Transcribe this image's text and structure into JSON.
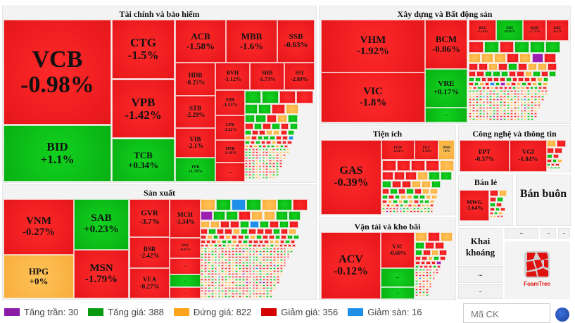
{
  "colors": {
    "ceil": "#9b1fb0",
    "up": "#0a9a12",
    "flat": "#f9a825",
    "down": "#d50000",
    "floor": "#1e8fe8"
  },
  "sectors": {
    "fin": {
      "title": "Tài chính và bảo hiểm"
    },
    "man": {
      "title": "Sản xuất"
    },
    "real": {
      "title": "Xây dựng và Bất động sản"
    },
    "util": {
      "title": "Tiện ích"
    },
    "trans": {
      "title": "Vận tải và kho bãi"
    },
    "tech": {
      "title": "Công nghệ và thông tin"
    },
    "retail": {
      "title": "Bán lẻ"
    },
    "whole": {
      "title": "Bán buôn"
    },
    "mining": {
      "title": "Khai khoáng"
    }
  },
  "tiles": {
    "VCB": {
      "ticker": "VCB",
      "change": "-0.98%",
      "state": "down"
    },
    "BID": {
      "ticker": "BID",
      "change": "+1.1%",
      "state": "up"
    },
    "CTG": {
      "ticker": "CTG",
      "change": "-1.5%",
      "state": "down"
    },
    "VPB": {
      "ticker": "VPB",
      "change": "-1.42%",
      "state": "down"
    },
    "TCB": {
      "ticker": "TCB",
      "change": "+0.34%",
      "state": "up"
    },
    "ACB": {
      "ticker": "ACB",
      "change": "-1.58%",
      "state": "down"
    },
    "MBB": {
      "ticker": "MBB",
      "change": "-1.6%",
      "state": "down"
    },
    "SSB": {
      "ticker": "SSB",
      "change": "-0.63%",
      "state": "down"
    },
    "HDB": {
      "ticker": "HDB",
      "change": "-0.25%",
      "state": "down"
    },
    "BVH": {
      "ticker": "BVH",
      "change": "-1.12%",
      "state": "down"
    },
    "SHB": {
      "ticker": "SHB",
      "change": "-1.73%",
      "state": "down"
    },
    "SSI": {
      "ticker": "SSI",
      "change": "-2.89%",
      "state": "down"
    },
    "STB": {
      "ticker": "STB",
      "change": "-2.29%",
      "state": "down"
    },
    "VIB": {
      "ticker": "VIB",
      "change": "-2.1%",
      "state": "down"
    },
    "TPB": {
      "ticker": "TPB",
      "change": "+1.76%",
      "state": "up"
    },
    "EIB": {
      "ticker": "EIB",
      "change": "-1.53%",
      "state": "down"
    },
    "LPB": {
      "ticker": "LPB",
      "change": "-3.22%",
      "state": "down"
    },
    "MSB": {
      "ticker": "MSB",
      "change": "-1.19%",
      "state": "down"
    },
    "FIN1": {
      "ticker": "...",
      "change": "",
      "state": "down"
    },
    "VNM": {
      "ticker": "VNM",
      "change": "-0.27%",
      "state": "down"
    },
    "HPG": {
      "ticker": "HPG",
      "change": "+0%",
      "state": "flat"
    },
    "SAB": {
      "ticker": "SAB",
      "change": "+0.23%",
      "state": "up"
    },
    "MSN": {
      "ticker": "MSN",
      "change": "-1.79%",
      "state": "down"
    },
    "GVR": {
      "ticker": "GVR",
      "change": "-3.7%",
      "state": "down"
    },
    "BSR": {
      "ticker": "BSR",
      "change": "-2.42%",
      "state": "down"
    },
    "VEA": {
      "ticker": "VEA",
      "change": "-0.27%",
      "state": "down"
    },
    "MCH": {
      "ticker": "MCH",
      "change": "-1.34%",
      "state": "down"
    },
    "PNJ": {
      "ticker": "PNJ",
      "change": "-0.65%",
      "state": "down"
    },
    "MAN1": {
      "ticker": "...",
      "change": "",
      "state": "down"
    },
    "MAN2": {
      "ticker": "...",
      "change": "",
      "state": "up"
    },
    "MAN3": {
      "ticker": "...",
      "change": "",
      "state": "down"
    },
    "VHM": {
      "ticker": "VHM",
      "change": "-1.92%",
      "state": "down"
    },
    "VIC": {
      "ticker": "VIC",
      "change": "-1.8%",
      "state": "down"
    },
    "BCM": {
      "ticker": "BCM",
      "change": "-0.86%",
      "state": "down"
    },
    "VRE": {
      "ticker": "VRE",
      "change": "+0.17%",
      "state": "up"
    },
    "RE1": {
      "ticker": "...",
      "change": "",
      "state": "up"
    },
    "REE": {
      "ticker": "REE",
      "change": "-1.14%",
      "state": "down"
    },
    "SSH": {
      "ticker": "SSH",
      "change": "+0.95%",
      "state": "up"
    },
    "KDH": {
      "ticker": "KDH",
      "change": "-1.72%",
      "state": "down"
    },
    "KBC": {
      "ticker": "KBC",
      "change": "-4.2%",
      "state": "down"
    },
    "GAS": {
      "ticker": "GAS",
      "change": "-0.39%",
      "state": "down"
    },
    "POW": {
      "ticker": "POW",
      "change": "-2.23%",
      "state": "down"
    },
    "PGV": {
      "ticker": "PGV",
      "change": "-1.34%",
      "state": "down"
    },
    "DNH": {
      "ticker": "DNH",
      "change": "+0%",
      "state": "flat"
    },
    "ACV": {
      "ticker": "ACV",
      "change": "-0.12%",
      "state": "down"
    },
    "VJC": {
      "ticker": "VJC",
      "change": "-0.68%",
      "state": "down"
    },
    "TR1": {
      "ticker": "...",
      "change": "",
      "state": "up"
    },
    "TR2": {
      "ticker": "...",
      "change": "",
      "state": "up"
    },
    "FPT": {
      "ticker": "FPT",
      "change": "-0.37%",
      "state": "down"
    },
    "VGI": {
      "ticker": "VGI",
      "change": "-1.84%",
      "state": "down"
    },
    "MWG": {
      "ticker": "MWG",
      "change": "-1.64%",
      "state": "down"
    },
    "G1": {
      "ticker": "...",
      "change": "",
      "state": "gray"
    },
    "G2": {
      "ticker": "...",
      "change": "",
      "state": "gray"
    },
    "G3": {
      "ticker": "...",
      "change": "",
      "state": "gray"
    },
    "G4": {
      "ticker": "...",
      "change": "",
      "state": "gray"
    },
    "G5": {
      "ticker": "...",
      "change": "",
      "state": "gray"
    }
  },
  "legend": [
    {
      "label": "Tăng trần: 30",
      "color": "#8e1aa8"
    },
    {
      "label": "Tăng giá: 388",
      "color": "#0a9a12"
    },
    {
      "label": "Đứng giá: 822",
      "color": "#ffa31a"
    },
    {
      "label": "Giảm giá: 356",
      "color": "#d50000"
    },
    {
      "label": "Giảm sàn: 16",
      "color": "#1e8fe8"
    }
  ],
  "search": {
    "placeholder": "Mã CK"
  },
  "foamtree": {
    "logo_text": "FoamTree"
  }
}
